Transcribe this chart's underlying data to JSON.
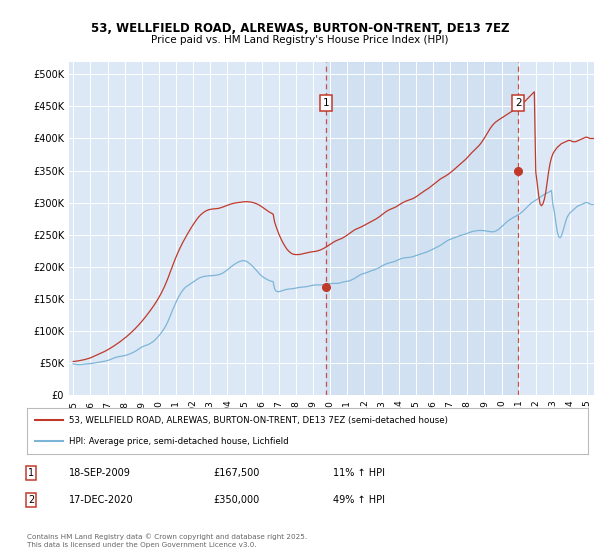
{
  "title_line1": "53, WELLFIELD ROAD, ALREWAS, BURTON-ON-TRENT, DE13 7EZ",
  "title_line2": "Price paid vs. HM Land Registry's House Price Index (HPI)",
  "ylim": [
    0,
    520000
  ],
  "yticks": [
    0,
    50000,
    100000,
    150000,
    200000,
    250000,
    300000,
    350000,
    400000,
    450000,
    500000
  ],
  "ytick_labels": [
    "£0",
    "£50K",
    "£100K",
    "£150K",
    "£200K",
    "£250K",
    "£300K",
    "£350K",
    "£400K",
    "£450K",
    "£500K"
  ],
  "background_color": "#ffffff",
  "plot_bg_color": "#dce8f5",
  "grid_color": "#ffffff",
  "hpi_color": "#7db5d8",
  "price_color": "#c0392b",
  "legend_label1": "53, WELLFIELD ROAD, ALREWAS, BURTON-ON-TRENT, DE13 7EZ (semi-detached house)",
  "legend_label2": "HPI: Average price, semi-detached house, Lichfield",
  "table_rows": [
    {
      "num": "1",
      "date": "18-SEP-2009",
      "price": "£167,500",
      "change": "11% ↑ HPI"
    },
    {
      "num": "2",
      "date": "17-DEC-2020",
      "price": "£350,000",
      "change": "49% ↑ HPI"
    }
  ],
  "footnote": "Contains HM Land Registry data © Crown copyright and database right 2025.\nThis data is licensed under the Open Government Licence v3.0.",
  "sale_points": [
    {
      "year": 2009.75,
      "price": 167500,
      "label": "1"
    },
    {
      "year": 2020.97,
      "price": 350000,
      "label": "2"
    }
  ],
  "x_tick_years": [
    1995,
    1996,
    1997,
    1998,
    1999,
    2000,
    2001,
    2002,
    2003,
    2004,
    2005,
    2006,
    2007,
    2008,
    2009,
    2010,
    2011,
    2012,
    2013,
    2014,
    2015,
    2016,
    2017,
    2018,
    2019,
    2020,
    2021,
    2022,
    2023,
    2024,
    2025
  ],
  "hpi_monthly": [
    48200,
    47800,
    47500,
    47200,
    47000,
    47100,
    47300,
    47600,
    48000,
    48200,
    48300,
    48500,
    48700,
    49000,
    49400,
    49800,
    50200,
    50600,
    51000,
    51400,
    51700,
    52000,
    52400,
    52900,
    53500,
    54200,
    55000,
    56000,
    57000,
    57800,
    58500,
    59100,
    59600,
    60000,
    60300,
    60700,
    61200,
    61800,
    62500,
    63300,
    64200,
    65200,
    66200,
    67400,
    68700,
    70200,
    71800,
    73200,
    74500,
    75500,
    76400,
    77200,
    78000,
    79000,
    80200,
    81600,
    83200,
    85000,
    87200,
    89600,
    92200,
    94900,
    97900,
    101000,
    104500,
    108500,
    113000,
    118000,
    123500,
    129000,
    134500,
    139500,
    144500,
    149000,
    153500,
    157500,
    161000,
    164000,
    166500,
    168500,
    170000,
    171500,
    173000,
    174500,
    176000,
    177500,
    179000,
    180500,
    182000,
    183000,
    183800,
    184400,
    184900,
    185200,
    185500,
    185700,
    185900,
    186100,
    186200,
    186300,
    186600,
    187000,
    187600,
    188300,
    189200,
    190400,
    191800,
    193400,
    195200,
    197000,
    198900,
    200700,
    202300,
    203800,
    205200,
    206400,
    207600,
    208400,
    209000,
    209300,
    209200,
    208600,
    207400,
    205800,
    204000,
    202000,
    199800,
    197400,
    194900,
    192400,
    189800,
    187500,
    185500,
    183800,
    182200,
    180900,
    179700,
    178600,
    177700,
    177100,
    176700,
    165500,
    162000,
    161000,
    161000,
    161500,
    162200,
    163000,
    163700,
    164300,
    164700,
    165000,
    165200,
    165400,
    165700,
    166100,
    166600,
    167100,
    167500,
    167800,
    168000,
    168200,
    168400,
    168700,
    169000,
    169500,
    170100,
    170600,
    171000,
    171300,
    171400,
    171400,
    171400,
    171400,
    171500,
    171700,
    172000,
    172400,
    172800,
    173200,
    173500,
    173700,
    173800,
    173800,
    173800,
    173900,
    174200,
    174700,
    175400,
    176000,
    176500,
    176800,
    177200,
    177700,
    178400,
    179300,
    180400,
    181600,
    183000,
    184500,
    185900,
    187200,
    188200,
    188900,
    189600,
    190300,
    191100,
    192000,
    192900,
    193700,
    194500,
    195300,
    196100,
    197100,
    198200,
    199500,
    200800,
    202000,
    203100,
    204100,
    204900,
    205600,
    206200,
    206700,
    207300,
    208000,
    208900,
    209900,
    210900,
    211900,
    212700,
    213300,
    213700,
    213900,
    214100,
    214300,
    214600,
    215100,
    215700,
    216400,
    217200,
    218000,
    218800,
    219500,
    220200,
    220900,
    221600,
    222300,
    223100,
    224100,
    225100,
    226200,
    227300,
    228400,
    229500,
    230600,
    231800,
    233100,
    234500,
    236000,
    237600,
    239100,
    240500,
    241700,
    242600,
    243400,
    244200,
    245000,
    245900,
    246800,
    247700,
    248500,
    249200,
    249800,
    250400,
    251100,
    252000,
    252900,
    253700,
    254400,
    255000,
    255500,
    255900,
    256200,
    256400,
    256500,
    256400,
    256300,
    256100,
    255800,
    255400,
    255000,
    254600,
    254400,
    254400,
    254800,
    255600,
    256800,
    258300,
    260100,
    262100,
    264200,
    266300,
    268400,
    270300,
    272100,
    273700,
    275100,
    276300,
    277500,
    278700,
    280000,
    281400,
    282900,
    284600,
    286600,
    288700,
    290900,
    293200,
    295400,
    297500,
    299400,
    301000,
    302400,
    303700,
    305000,
    306500,
    308200,
    309900,
    311400,
    312800,
    313900,
    314900,
    316000,
    317300,
    318900,
    297000,
    286000,
    271000,
    255000,
    247000,
    245000,
    248000,
    255000,
    263000,
    271000,
    277000,
    281000,
    284000,
    286000,
    288000,
    290000,
    292000,
    294000,
    295000,
    296000,
    297000,
    298000,
    299000,
    300000,
    300000,
    299000,
    298000,
    297000,
    297000,
    297000,
    297000,
    297000,
    297000,
    297000,
    297000,
    297000,
    297000
  ],
  "price_monthly": [
    52000,
    52200,
    52500,
    52800,
    53200,
    53600,
    54000,
    54500,
    55000,
    55600,
    56200,
    56900,
    57700,
    58600,
    59600,
    60600,
    61600,
    62600,
    63600,
    64600,
    65600,
    66600,
    67700,
    68900,
    70100,
    71400,
    72700,
    74100,
    75500,
    77000,
    78500,
    80000,
    81600,
    83200,
    84900,
    86600,
    88400,
    90200,
    92100,
    94000,
    96000,
    98100,
    100200,
    102400,
    104700,
    107100,
    109500,
    112000,
    114600,
    117300,
    120000,
    122800,
    125700,
    128600,
    131600,
    134700,
    137900,
    141200,
    144600,
    148200,
    152000,
    156000,
    160200,
    164700,
    169500,
    174600,
    180100,
    185900,
    191900,
    197900,
    203900,
    209700,
    215200,
    220400,
    225400,
    230200,
    234700,
    239000,
    243100,
    247100,
    251000,
    254800,
    258500,
    262100,
    265600,
    269000,
    272200,
    275200,
    277900,
    280300,
    282400,
    284200,
    285800,
    287100,
    288100,
    288900,
    289400,
    289800,
    290000,
    290200,
    290400,
    290700,
    291100,
    291700,
    292400,
    293200,
    294000,
    294900,
    295800,
    296600,
    297400,
    298100,
    298700,
    299200,
    299600,
    299900,
    300200,
    300500,
    300800,
    301100,
    301300,
    301400,
    301400,
    301200,
    300900,
    300500,
    300000,
    299300,
    298500,
    297500,
    296400,
    295100,
    293600,
    292000,
    290300,
    288700,
    287100,
    285700,
    284400,
    283200,
    282100,
    270000,
    263000,
    257000,
    251000,
    246000,
    241000,
    237000,
    233000,
    229500,
    226500,
    224000,
    222000,
    220500,
    219500,
    219000,
    218800,
    218800,
    218900,
    219200,
    219700,
    220200,
    220700,
    221300,
    221800,
    222300,
    222700,
    223000,
    223300,
    223600,
    224000,
    224500,
    225200,
    226000,
    226900,
    228000,
    229200,
    230500,
    231900,
    233400,
    234900,
    236400,
    237800,
    239100,
    240300,
    241300,
    242200,
    243100,
    244000,
    245100,
    246400,
    247900,
    249500,
    251200,
    252900,
    254500,
    256000,
    257300,
    258400,
    259400,
    260300,
    261300,
    262300,
    263500,
    264700,
    266000,
    267200,
    268400,
    269500,
    270600,
    271800,
    273000,
    274300,
    275700,
    277200,
    278900,
    280700,
    282400,
    284100,
    285700,
    287100,
    288300,
    289400,
    290300,
    291200,
    292200,
    293300,
    294600,
    296000,
    297400,
    298800,
    300100,
    301200,
    302200,
    303100,
    303900,
    304600,
    305400,
    306300,
    307500,
    308800,
    310300,
    311900,
    313500,
    315100,
    316700,
    318200,
    319600,
    321000,
    322500,
    324100,
    325900,
    327700,
    329600,
    331400,
    333200,
    334900,
    336500,
    337900,
    339200,
    340400,
    341700,
    343100,
    344700,
    346400,
    348200,
    350000,
    352000,
    354100,
    356100,
    358100,
    360000,
    361900,
    363800,
    365700,
    367700,
    370000,
    372500,
    375000,
    377400,
    379600,
    381700,
    383800,
    386000,
    388400,
    391000,
    393900,
    397100,
    400600,
    404300,
    408100,
    411900,
    415400,
    418600,
    421400,
    423800,
    425800,
    427500,
    429000,
    430500,
    431900,
    433300,
    434700,
    436200,
    437700,
    439200,
    440600,
    442000,
    443300,
    444700,
    446100,
    447600,
    449200,
    450900,
    452800,
    454900,
    457100,
    459400,
    461700,
    464000,
    466300,
    468500,
    470700,
    472900,
    348000,
    330000,
    312000,
    298000,
    295000,
    298000,
    305000,
    316000,
    332000,
    348000,
    361000,
    370000,
    376000,
    380000,
    383000,
    386000,
    388000,
    390000,
    392000,
    393000,
    394000,
    395000,
    396000,
    397000,
    397000,
    396000,
    395000,
    395000,
    395000,
    396000,
    397000,
    398000,
    399000,
    400000,
    401000,
    402000,
    402000,
    401000,
    400000,
    400000,
    400000,
    400000,
    400000,
    400500,
    401000,
    402000,
    403000,
    404000,
    405000
  ]
}
